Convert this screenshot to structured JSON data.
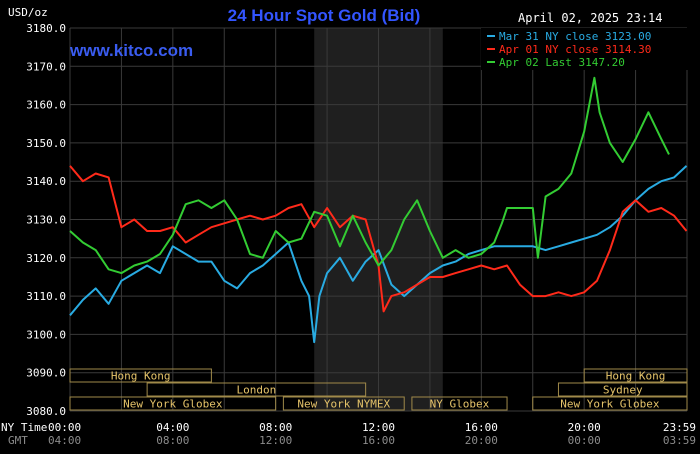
{
  "chart_data": {
    "type": "line",
    "title": "24 Hour Spot Gold (Bid)",
    "ylabel": "USD/oz",
    "date_stamp": "April 02, 2025 23:14",
    "watermark": "www.kitco.com",
    "ylim": [
      3080,
      3180
    ],
    "y_ticks": [
      "3180.0",
      "3170.0",
      "3160.0",
      "3150.0",
      "3140.0",
      "3130.0",
      "3120.0",
      "3110.0",
      "3100.0",
      "3090.0",
      "3080.0"
    ],
    "x_axis_label": "NY Time",
    "x_ticks_ny": [
      "00:00",
      "04:00",
      "08:00",
      "12:00",
      "16:00",
      "20:00",
      "23:59"
    ],
    "x_ticks_gmt_label": "GMT",
    "x_ticks_gmt": [
      "04:00",
      "08:00",
      "12:00",
      "16:00",
      "20:00",
      "00:00",
      "03:59"
    ],
    "shaded_session": [
      9.5,
      14.5
    ],
    "series": [
      {
        "name": "Mar 31 NY close 3123.00",
        "color": "#29abe2",
        "x": [
          0.0,
          0.5,
          1.0,
          1.5,
          2.0,
          2.5,
          3.0,
          3.5,
          4.0,
          4.5,
          5.0,
          5.5,
          6.0,
          6.5,
          7.0,
          7.5,
          8.0,
          8.5,
          9.0,
          9.3,
          9.5,
          9.7,
          10.0,
          10.5,
          11.0,
          11.5,
          12.0,
          12.5,
          13.0,
          13.5,
          14.0,
          14.5,
          15.0,
          15.5,
          16.0,
          16.5,
          17.0,
          17.5,
          18.0,
          18.5,
          19.0,
          19.5,
          20.0,
          20.5,
          21.0,
          21.5,
          22.0,
          22.5,
          23.0,
          23.5,
          23.98
        ],
        "values": [
          3105,
          3109,
          3112,
          3108,
          3114,
          3116,
          3118,
          3116,
          3123,
          3121,
          3119,
          3119,
          3114,
          3112,
          3116,
          3118,
          3121,
          3124,
          3114,
          3110,
          3098,
          3110,
          3116,
          3120,
          3114,
          3119,
          3122,
          3113,
          3110,
          3113,
          3116,
          3118,
          3119,
          3121,
          3122,
          3123,
          3123,
          3123,
          3123,
          3122,
          3123,
          3124,
          3125,
          3126,
          3128,
          3131,
          3135,
          3138,
          3140,
          3141,
          3144
        ]
      },
      {
        "name": "Apr 01 NY close 3114.30",
        "color": "#ff2a1a",
        "x": [
          0.0,
          0.5,
          1.0,
          1.5,
          2.0,
          2.5,
          3.0,
          3.5,
          4.0,
          4.5,
          5.0,
          5.5,
          6.0,
          6.5,
          7.0,
          7.5,
          8.0,
          8.5,
          9.0,
          9.5,
          10.0,
          10.5,
          11.0,
          11.5,
          12.0,
          12.2,
          12.5,
          13.0,
          13.5,
          14.0,
          14.5,
          15.0,
          15.5,
          16.0,
          16.5,
          17.0,
          17.5,
          18.0,
          18.5,
          19.0,
          19.5,
          20.0,
          20.5,
          21.0,
          21.5,
          22.0,
          22.5,
          23.0,
          23.5,
          23.98
        ],
        "values": [
          3144,
          3140,
          3142,
          3141,
          3128,
          3130,
          3127,
          3127,
          3128,
          3124,
          3126,
          3128,
          3129,
          3130,
          3131,
          3130,
          3131,
          3133,
          3134,
          3128,
          3133,
          3128,
          3131,
          3130,
          3118,
          3106,
          3110,
          3111,
          3113,
          3115,
          3115,
          3116,
          3117,
          3118,
          3117,
          3118,
          3113,
          3110,
          3110,
          3111,
          3110,
          3111,
          3114,
          3122,
          3132,
          3135,
          3132,
          3133,
          3131,
          3127
        ]
      },
      {
        "name": "Apr 02 Last 3147.20",
        "color": "#33cc33",
        "x": [
          0.0,
          0.5,
          1.0,
          1.5,
          2.0,
          2.5,
          3.0,
          3.5,
          4.0,
          4.5,
          5.0,
          5.5,
          6.0,
          6.5,
          7.0,
          7.5,
          8.0,
          8.5,
          9.0,
          9.5,
          10.0,
          10.5,
          11.0,
          11.5,
          12.0,
          12.5,
          13.0,
          13.5,
          14.0,
          14.5,
          15.0,
          15.5,
          16.0,
          16.5,
          16.8,
          17.0,
          17.5,
          18.0,
          18.2,
          18.5,
          19.0,
          19.5,
          20.0,
          20.4,
          20.6,
          21.0,
          21.5,
          22.0,
          22.5,
          23.0,
          23.3
        ],
        "values": [
          3127,
          3124,
          3122,
          3117,
          3116,
          3118,
          3119,
          3121,
          3126,
          3134,
          3135,
          3133,
          3135,
          3130,
          3121,
          3120,
          3127,
          3124,
          3125,
          3132,
          3131,
          3123,
          3131,
          3124,
          3118,
          3122,
          3130,
          3135,
          3127,
          3120,
          3122,
          3120,
          3121,
          3124,
          3129,
          3133,
          3133,
          3133,
          3120,
          3136,
          3138,
          3142,
          3153,
          3167,
          3158,
          3150,
          3145,
          3151,
          3158,
          3151,
          3147
        ]
      }
    ],
    "sessions": [
      {
        "label": "Hong Kong",
        "row": 0,
        "start": 0.0,
        "end": 5.5
      },
      {
        "label": "London",
        "row": 1,
        "start": 3.0,
        "end": 11.5
      },
      {
        "label": "New York Globex",
        "row": 2,
        "start": 0.0,
        "end": 8.0
      },
      {
        "label": "New York NYMEX",
        "row": 2,
        "start": 8.3,
        "end": 13.0
      },
      {
        "label": "NY Globex",
        "row": 2,
        "start": 13.3,
        "end": 17.0
      },
      {
        "label": "Sydney",
        "row": 1,
        "start": 19.0,
        "end": 24.0
      },
      {
        "label": "Hong Kong",
        "row": 0,
        "start": 20.0,
        "end": 24.0
      },
      {
        "label": "New York Globex",
        "row": 2,
        "start": 18.0,
        "end": 24.0
      }
    ],
    "colors": {
      "background": "#000000",
      "grid": "#3a3a3a",
      "shade": "#1f1f1f",
      "title": "#3355ff",
      "watermark": "#3a5cf0",
      "axis_text": "#ffffff",
      "gmt_text": "#8c8c8c",
      "session_border": "#a08a4a",
      "session_text": "#e6c46a"
    }
  }
}
